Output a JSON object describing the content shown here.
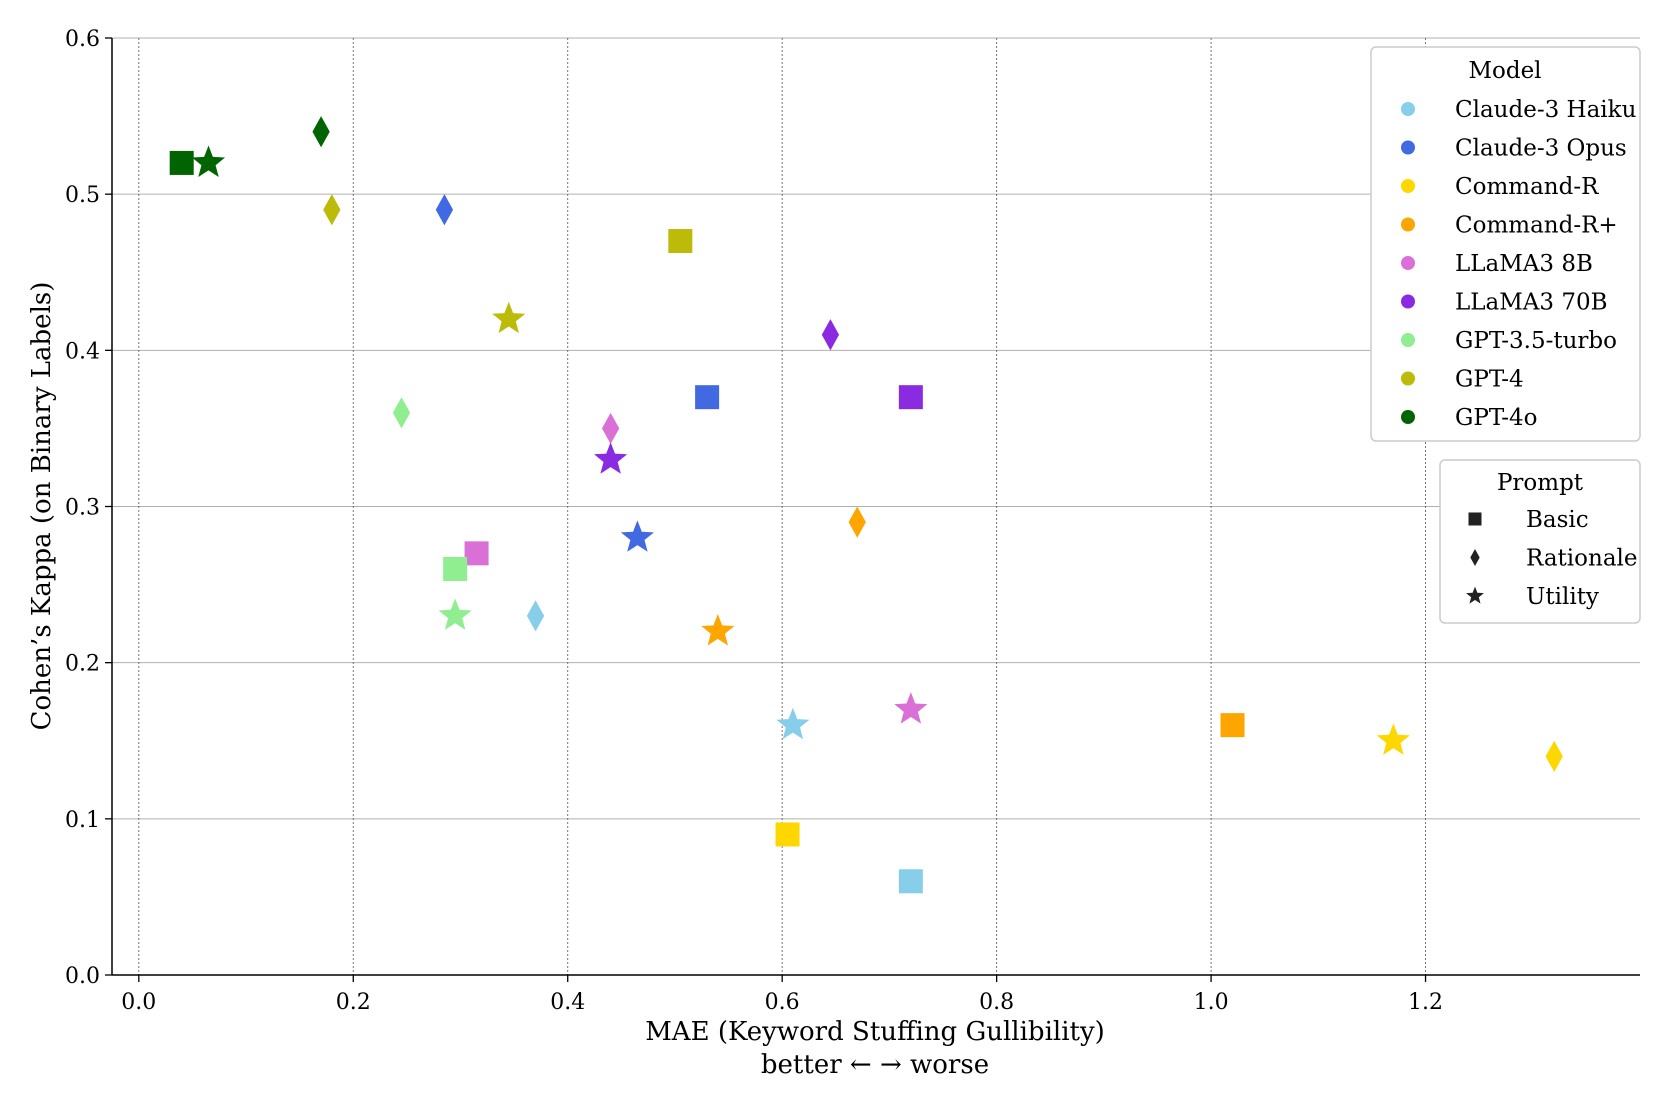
{
  "chart_data": {
    "type": "scatter",
    "title": "",
    "xlabel": "MAE (Keyword Stuffing Gullibility)",
    "xlabel_sub": "better ← → worse",
    "ylabel": "Cohen’s Kappa (on Binary Labels)",
    "xlim": [
      -0.025,
      1.4
    ],
    "ylim": [
      0.0,
      0.6
    ],
    "xticks": [
      0.0,
      0.2,
      0.4,
      0.6,
      0.8,
      1.0,
      1.2
    ],
    "xtick_labels": [
      "0.0",
      "0.2",
      "0.4",
      "0.6",
      "0.8",
      "1.0",
      "1.2"
    ],
    "yticks": [
      0.0,
      0.1,
      0.2,
      0.3,
      0.4,
      0.5,
      0.6
    ],
    "ytick_labels": [
      "0.0",
      "0.1",
      "0.2",
      "0.3",
      "0.4",
      "0.5",
      "0.6"
    ],
    "grid": true,
    "legend_placement": "top-right",
    "models_title": "Model",
    "models": [
      {
        "name": "Claude-3 Haiku",
        "color": "#87CEEB"
      },
      {
        "name": "Claude-3 Opus",
        "color": "#4169E1"
      },
      {
        "name": "Command-R",
        "color": "#FFD700"
      },
      {
        "name": "Command-R+",
        "color": "#FFA500"
      },
      {
        "name": "LLaMA3 8B",
        "color": "#DA70D6"
      },
      {
        "name": "LLaMA3 70B",
        "color": "#8A2BE2"
      },
      {
        "name": "GPT-3.5-turbo",
        "color": "#90EE90"
      },
      {
        "name": "GPT-4",
        "color": "#BDBB0A"
      },
      {
        "name": "GPT-4o",
        "color": "#006400"
      }
    ],
    "prompts_title": "Prompt",
    "prompts": [
      {
        "name": "Basic",
        "marker": "square"
      },
      {
        "name": "Rationale",
        "marker": "diamond"
      },
      {
        "name": "Utility",
        "marker": "star"
      }
    ],
    "points": [
      {
        "model": "Claude-3 Haiku",
        "prompt": "Basic",
        "x": 0.72,
        "y": 0.06
      },
      {
        "model": "Claude-3 Haiku",
        "prompt": "Rationale",
        "x": 0.37,
        "y": 0.23
      },
      {
        "model": "Claude-3 Haiku",
        "prompt": "Utility",
        "x": 0.61,
        "y": 0.16
      },
      {
        "model": "Claude-3 Opus",
        "prompt": "Basic",
        "x": 0.53,
        "y": 0.37
      },
      {
        "model": "Claude-3 Opus",
        "prompt": "Rationale",
        "x": 0.285,
        "y": 0.49
      },
      {
        "model": "Claude-3 Opus",
        "prompt": "Utility",
        "x": 0.465,
        "y": 0.28
      },
      {
        "model": "Command-R",
        "prompt": "Basic",
        "x": 0.605,
        "y": 0.09
      },
      {
        "model": "Command-R",
        "prompt": "Rationale",
        "x": 1.32,
        "y": 0.14
      },
      {
        "model": "Command-R",
        "prompt": "Utility",
        "x": 1.17,
        "y": 0.15
      },
      {
        "model": "Command-R+",
        "prompt": "Basic",
        "x": 1.02,
        "y": 0.16
      },
      {
        "model": "Command-R+",
        "prompt": "Rationale",
        "x": 0.67,
        "y": 0.29
      },
      {
        "model": "Command-R+",
        "prompt": "Utility",
        "x": 0.54,
        "y": 0.22
      },
      {
        "model": "LLaMA3 8B",
        "prompt": "Basic",
        "x": 0.315,
        "y": 0.27
      },
      {
        "model": "LLaMA3 8B",
        "prompt": "Rationale",
        "x": 0.44,
        "y": 0.35
      },
      {
        "model": "LLaMA3 8B",
        "prompt": "Utility",
        "x": 0.72,
        "y": 0.17
      },
      {
        "model": "LLaMA3 70B",
        "prompt": "Basic",
        "x": 0.72,
        "y": 0.37
      },
      {
        "model": "LLaMA3 70B",
        "prompt": "Rationale",
        "x": 0.645,
        "y": 0.41
      },
      {
        "model": "LLaMA3 70B",
        "prompt": "Utility",
        "x": 0.44,
        "y": 0.33
      },
      {
        "model": "GPT-3.5-turbo",
        "prompt": "Basic",
        "x": 0.295,
        "y": 0.26
      },
      {
        "model": "GPT-3.5-turbo",
        "prompt": "Rationale",
        "x": 0.245,
        "y": 0.36
      },
      {
        "model": "GPT-3.5-turbo",
        "prompt": "Utility",
        "x": 0.295,
        "y": 0.23
      },
      {
        "model": "GPT-4",
        "prompt": "Basic",
        "x": 0.505,
        "y": 0.47
      },
      {
        "model": "GPT-4",
        "prompt": "Rationale",
        "x": 0.18,
        "y": 0.49
      },
      {
        "model": "GPT-4",
        "prompt": "Utility",
        "x": 0.345,
        "y": 0.42
      },
      {
        "model": "GPT-4o",
        "prompt": "Basic",
        "x": 0.04,
        "y": 0.52
      },
      {
        "model": "GPT-4o",
        "prompt": "Rationale",
        "x": 0.17,
        "y": 0.54
      },
      {
        "model": "GPT-4o",
        "prompt": "Utility",
        "x": 0.065,
        "y": 0.52
      }
    ]
  }
}
